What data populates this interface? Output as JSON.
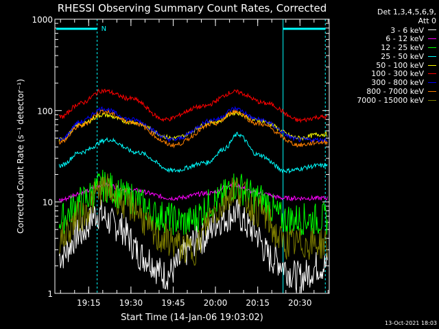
{
  "chart_data": {
    "type": "line",
    "title": "RHESSI Observing Summary Count Rates, Corrected",
    "xlabel": "Start Time (14-Jan-06 19:03:02)",
    "ylabel": "Corrected Count Rate (s⁻¹ detector⁻¹)",
    "y_scale": "log",
    "ylim": [
      1,
      1000
    ],
    "y_ticks": [
      {
        "value": 1,
        "label": "1"
      },
      {
        "value": 10,
        "label": "10"
      },
      {
        "value": 100,
        "label": "100"
      },
      {
        "value": 1000,
        "label": "1000"
      }
    ],
    "xlim": [
      "19:03",
      "20:40"
    ],
    "x_ticks": [
      "19:15",
      "19:30",
      "19:45",
      "20:00",
      "20:15",
      "20:30"
    ],
    "legend_placement": "right",
    "legend_header": [
      "Det 1,3,4,5,6,9,",
      "Att 0"
    ],
    "night_intervals": [
      {
        "start": "19:03",
        "end": "19:03"
      },
      {
        "start": "20:24",
        "end": "20:39"
      }
    ],
    "saa_flag_label": "N",
    "saa_interval_start": "19:18",
    "series": [
      {
        "name": "3 - 6 keV",
        "color": "#ffffff",
        "x": [
          "19:05",
          "19:12",
          "19:18",
          "19:25",
          "19:35",
          "19:42",
          "19:55",
          "20:02",
          "20:07",
          "20:13",
          "20:20",
          "20:30",
          "20:37"
        ],
        "y": [
          2.6,
          4.5,
          7.5,
          5.5,
          2.5,
          1.6,
          4.0,
          6.5,
          7.5,
          5.0,
          2.4,
          1.5,
          2.0
        ]
      },
      {
        "name": "6 - 12 keV",
        "color": "#ff00ff",
        "x": [
          "19:05",
          "19:12",
          "19:20",
          "19:30",
          "19:45",
          "19:58",
          "20:06",
          "20:15",
          "20:25",
          "20:37"
        ],
        "y": [
          10.5,
          12.5,
          15.5,
          13.5,
          11,
          12.5,
          15.5,
          12.5,
          11,
          11
        ]
      },
      {
        "name": "12 - 25 keV",
        "color": "#00ff00",
        "x": [
          "19:05",
          "19:12",
          "19:20",
          "19:30",
          "19:40",
          "19:50",
          "20:00",
          "20:07",
          "20:15",
          "20:25",
          "20:37"
        ],
        "y": [
          6.5,
          10,
          15,
          11,
          7,
          6,
          10,
          15,
          11,
          6.5,
          6.5
        ]
      },
      {
        "name": "25 - 50 keV",
        "color": "#00ffff",
        "x": [
          "19:05",
          "19:12",
          "19:22",
          "19:32",
          "19:45",
          "19:57",
          "20:03",
          "20:08",
          "20:15",
          "20:25",
          "20:37"
        ],
        "y": [
          25,
          35,
          48,
          35,
          22,
          27,
          38,
          55,
          33,
          22,
          25
        ]
      },
      {
        "name": "50 - 100 keV",
        "color": "#ffff00",
        "x": [
          "19:05",
          "19:12",
          "19:20",
          "19:30",
          "19:45",
          "20:00",
          "20:07",
          "20:15",
          "20:30",
          "20:37"
        ],
        "y": [
          48,
          70,
          90,
          75,
          50,
          75,
          95,
          78,
          50,
          55
        ]
      },
      {
        "name": "100 - 300 keV",
        "color": "#ff0000",
        "x": [
          "19:05",
          "19:12",
          "19:20",
          "19:30",
          "19:42",
          "19:55",
          "20:07",
          "20:18",
          "20:30",
          "20:37"
        ],
        "y": [
          85,
          120,
          165,
          135,
          80,
          110,
          160,
          120,
          78,
          85
        ]
      },
      {
        "name": "300 - 800 keV",
        "color": "#0000ff",
        "x": [
          "19:05",
          "19:12",
          "19:20",
          "19:30",
          "19:45",
          "20:00",
          "20:07",
          "20:15",
          "20:30",
          "20:37"
        ],
        "y": [
          48,
          75,
          105,
          80,
          48,
          80,
          105,
          80,
          48,
          48
        ]
      },
      {
        "name": "800 - 7000 keV",
        "color": "#ff8000",
        "x": [
          "19:05",
          "19:12",
          "19:20",
          "19:30",
          "19:45",
          "20:00",
          "20:07",
          "20:15",
          "20:30",
          "20:37"
        ],
        "y": [
          45,
          68,
          98,
          75,
          42,
          72,
          98,
          72,
          42,
          45
        ]
      },
      {
        "name": "7000 - 15000 keV",
        "color": "#808000",
        "x": [
          "19:05",
          "19:12",
          "19:20",
          "19:30",
          "19:40",
          "19:52",
          "20:00",
          "20:07",
          "20:15",
          "20:25",
          "20:37"
        ],
        "y": [
          4,
          7,
          14,
          9,
          4,
          3,
          8,
          14,
          8,
          3.5,
          3.5
        ]
      }
    ]
  },
  "timestamp": "13-Oct-2021 18:03"
}
